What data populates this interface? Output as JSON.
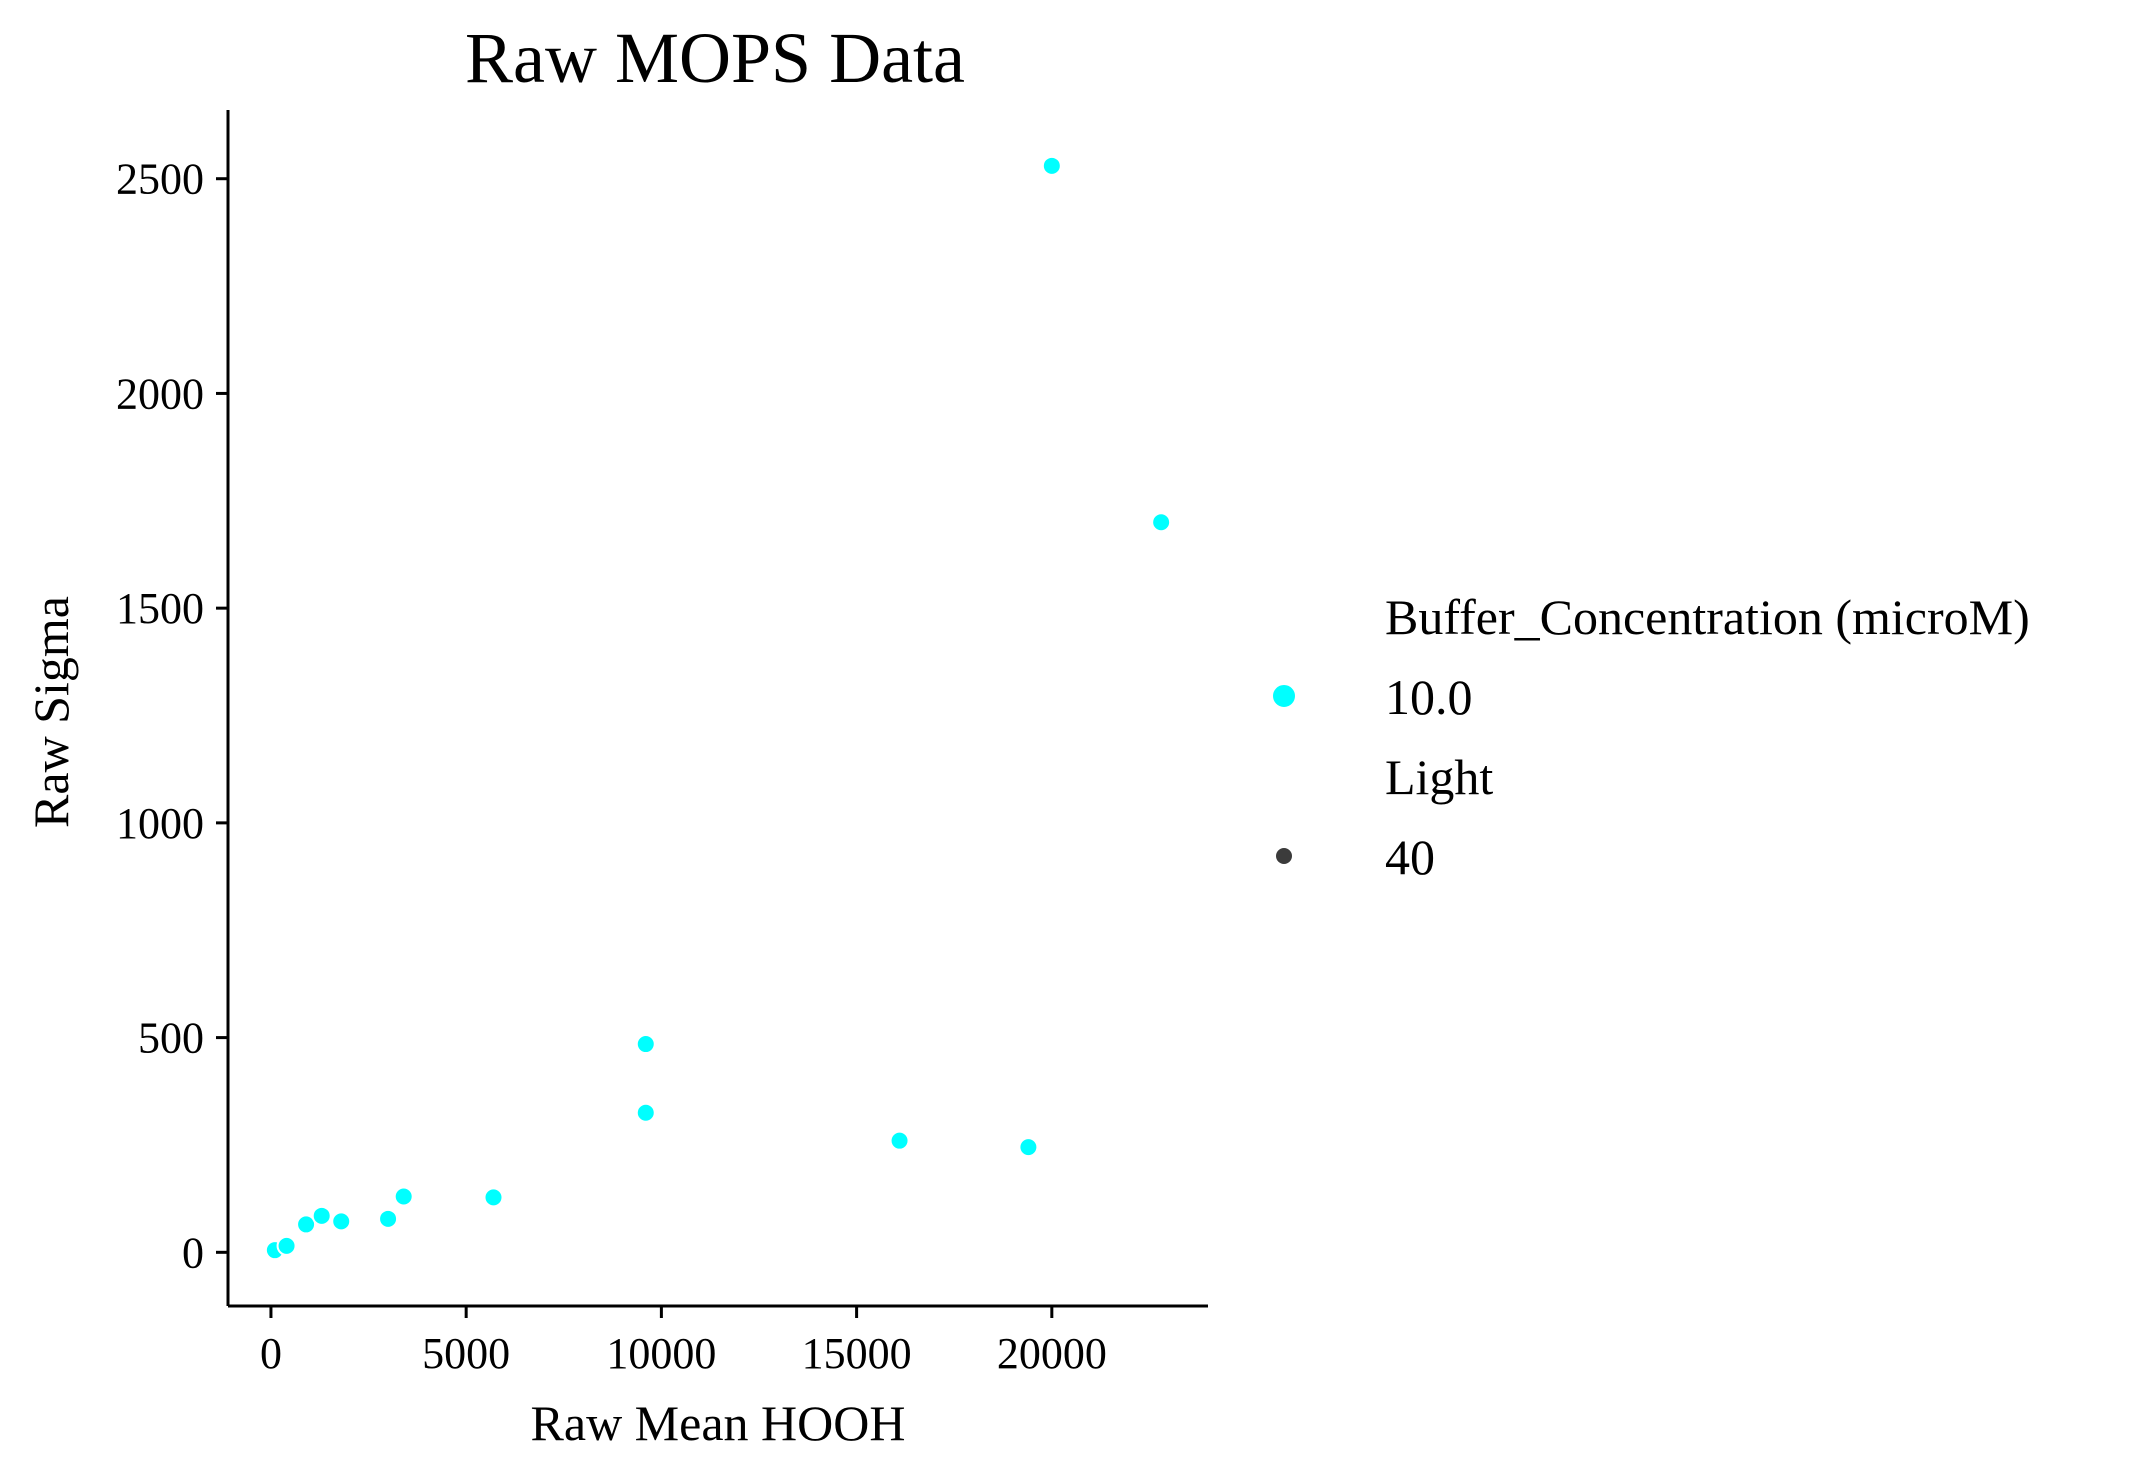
{
  "chart_data": {
    "type": "scatter",
    "title": "Raw MOPS Data",
    "xlabel": "Raw Mean HOOH",
    "ylabel": "Raw Sigma",
    "xlim": [
      -1100,
      24000
    ],
    "ylim": [
      -125,
      2660
    ],
    "xticks": [
      0,
      5000,
      10000,
      15000,
      20000
    ],
    "yticks": [
      0,
      500,
      1000,
      1500,
      2000,
      2500
    ],
    "xtick_labels": [
      "0",
      "5000",
      "10000",
      "15000",
      "20000"
    ],
    "ytick_labels": [
      "0",
      "500",
      "1000",
      "1500",
      "2000",
      "2500"
    ],
    "grid": false,
    "legend_position": "right",
    "legend": {
      "hue_title": "Buffer_Concentration (microM)",
      "hue_entry": "10.0",
      "size_title": "Light",
      "size_entry": "40"
    },
    "series": [
      {
        "name": "10.0",
        "color": "#00ffff",
        "points": [
          {
            "x": 100,
            "y": 5
          },
          {
            "x": 400,
            "y": 15
          },
          {
            "x": 900,
            "y": 65
          },
          {
            "x": 1300,
            "y": 85
          },
          {
            "x": 1800,
            "y": 72
          },
          {
            "x": 3000,
            "y": 78
          },
          {
            "x": 3400,
            "y": 130
          },
          {
            "x": 5700,
            "y": 128
          },
          {
            "x": 9600,
            "y": 485
          },
          {
            "x": 9600,
            "y": 325
          },
          {
            "x": 16100,
            "y": 260
          },
          {
            "x": 19400,
            "y": 245
          },
          {
            "x": 20000,
            "y": 2530
          },
          {
            "x": 22800,
            "y": 1700
          }
        ]
      }
    ]
  },
  "colors": {
    "point": "#00ffff",
    "point_edge": "#ffffff",
    "size_marker": "#3b3b3b",
    "axis": "#000000"
  }
}
